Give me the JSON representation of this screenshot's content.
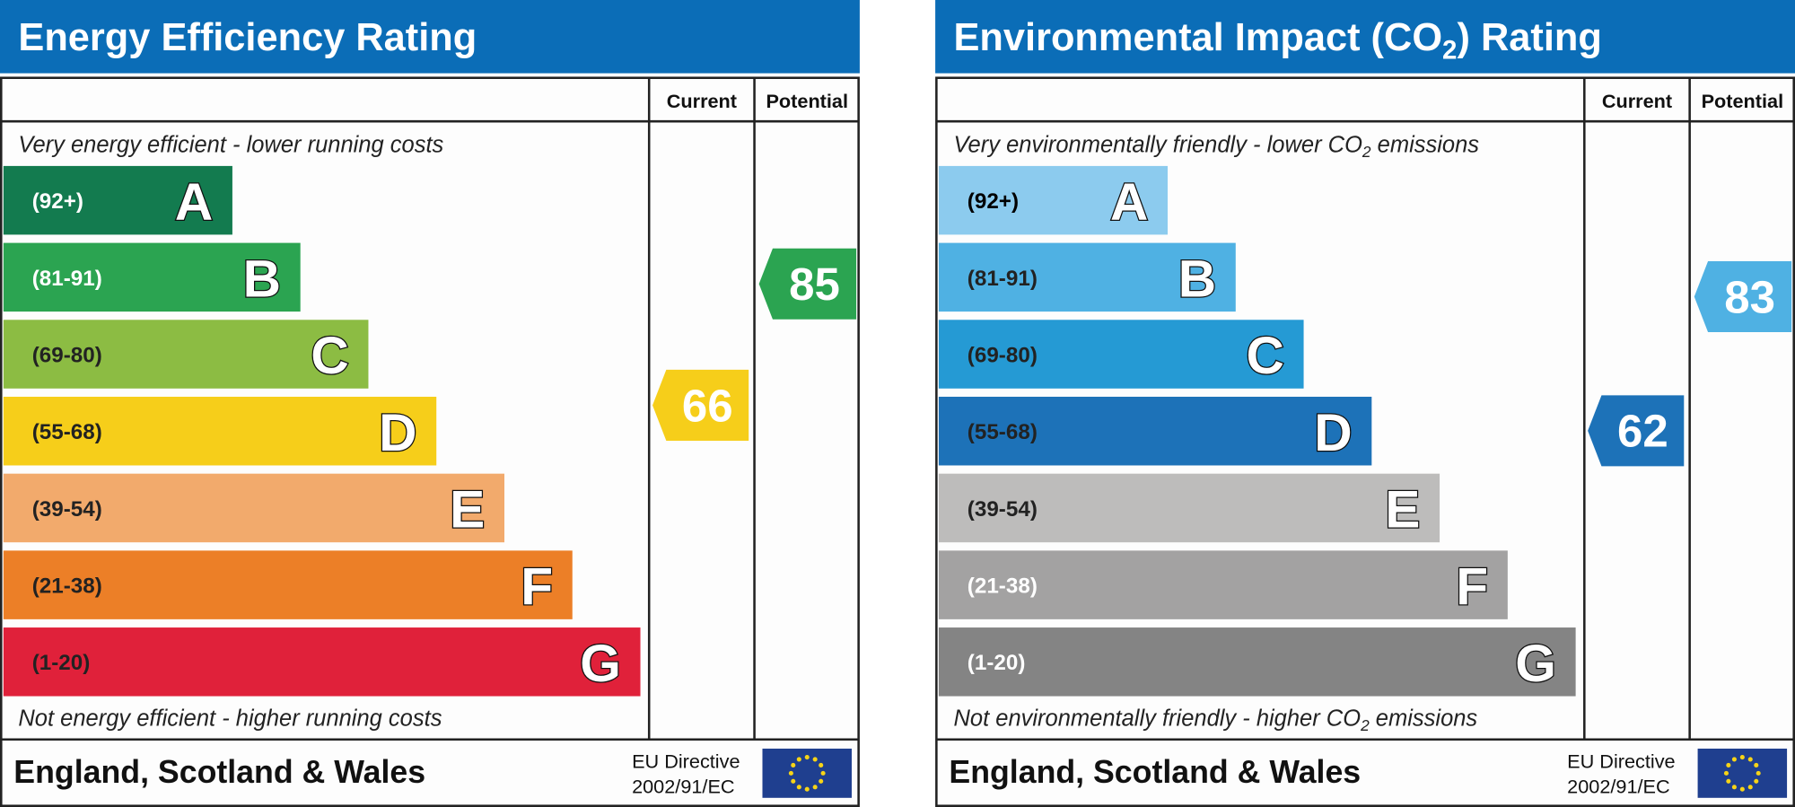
{
  "panels": [
    {
      "title": [
        "Energy Efficiency Rating"
      ],
      "columns": [
        "Current",
        "Potential"
      ],
      "top_note": [
        "Very energy efficient - lower running costs"
      ],
      "bottom_note": [
        "Not energy efficient - higher running costs"
      ],
      "bands": [
        {
          "range": "(92+)",
          "letter": "A",
          "color": "#137b4f",
          "text_color": "#ffffff"
        },
        {
          "range": "(81-91)",
          "letter": "B",
          "color": "#2ba451",
          "text_color": "#ffffff"
        },
        {
          "range": "(69-80)",
          "letter": "C",
          "color": "#8cbc43",
          "text_color": "#222222"
        },
        {
          "range": "(55-68)",
          "letter": "D",
          "color": "#f6ce1a",
          "text_color": "#222222"
        },
        {
          "range": "(39-54)",
          "letter": "E",
          "color": "#f2aa6c",
          "text_color": "#222222"
        },
        {
          "range": "(21-38)",
          "letter": "F",
          "color": "#ec7f27",
          "text_color": "#222222"
        },
        {
          "range": "(1-20)",
          "letter": "G",
          "color": "#e0213a",
          "text_color": "#222222"
        }
      ],
      "current": 66,
      "current_color": "#f6ce1a",
      "potential": 85,
      "potential_color": "#2ba451",
      "footer": "England, Scotland & Wales",
      "directive": [
        "EU Directive",
        "2002/91/EC"
      ]
    },
    {
      "title": [
        "Environmental Impact (CO",
        "2",
        ") Rating"
      ],
      "columns": [
        "Current",
        "Potential"
      ],
      "top_note": [
        "Very environmentally friendly - lower CO",
        "2",
        " emissions"
      ],
      "bottom_note": [
        "Not environmentally friendly - higher CO",
        "2",
        " emissions"
      ],
      "bands": [
        {
          "range": "(92+)",
          "letter": "A",
          "color": "#8ccbee",
          "text_color": "#000000"
        },
        {
          "range": "(81-91)",
          "letter": "B",
          "color": "#4fb1e3",
          "text_color": "#222222"
        },
        {
          "range": "(69-80)",
          "letter": "C",
          "color": "#259ad4",
          "text_color": "#222222"
        },
        {
          "range": "(55-68)",
          "letter": "D",
          "color": "#1d72b8",
          "text_color": "#222222"
        },
        {
          "range": "(39-54)",
          "letter": "E",
          "color": "#bdbcbb",
          "text_color": "#222222"
        },
        {
          "range": "(21-38)",
          "letter": "F",
          "color": "#a3a2a2",
          "text_color": "#ffffff"
        },
        {
          "range": "(1-20)",
          "letter": "G",
          "color": "#848484",
          "text_color": "#ffffff"
        }
      ],
      "current": 62,
      "current_color": "#1d72b8",
      "potential": 83,
      "potential_color": "#4fb1e3",
      "footer": "England, Scotland & Wales",
      "directive": [
        "EU Directive",
        "2002/91/EC"
      ]
    }
  ]
}
